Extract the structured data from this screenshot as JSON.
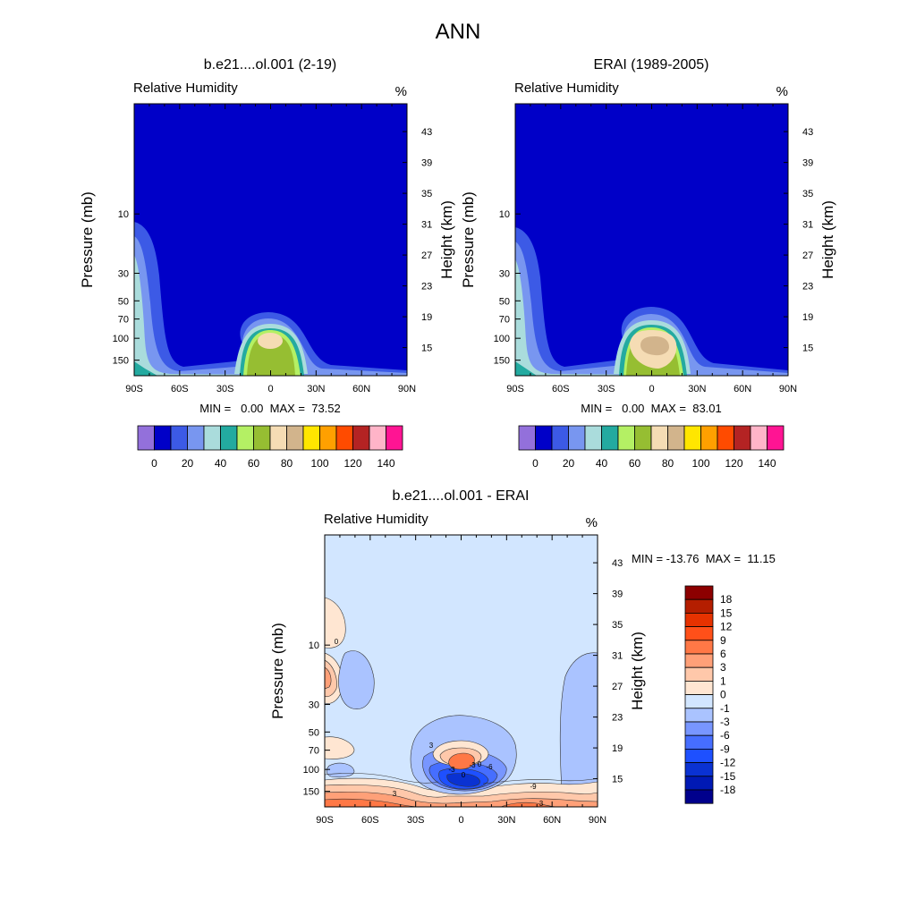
{
  "page": {
    "title": "ANN"
  },
  "colors": {
    "rh_palette": [
      "#9370db",
      "#0000c8",
      "#3c5ae6",
      "#7896f0",
      "#aadcdc",
      "#23aaa0",
      "#b4f064",
      "#96be32",
      "#f5dcb4",
      "#d2b48c",
      "#ffe600",
      "#ffa000",
      "#ff4b00",
      "#b42323",
      "#ffb4c8",
      "#ff1493"
    ],
    "diff_palette": [
      "#00008c",
      "#0019b4",
      "#0a32d2",
      "#1e50ff",
      "#466eff",
      "#7896ff",
      "#aac3ff",
      "#d2e6ff",
      "#ffe6d2",
      "#ffc8aa",
      "#ffa078",
      "#ff7846",
      "#ff5019",
      "#e63200",
      "#b41e00",
      "#8c0000"
    ]
  },
  "chart_data": [
    {
      "type": "contour",
      "panel": "left",
      "title": "b.e21....ol.001 (2-19)",
      "variable": "Relative Humidity",
      "units": "%",
      "ylabel": "Pressure (mb)",
      "ylabel_right": "Height (km)",
      "x_ticks": [
        "90S",
        "60S",
        "30S",
        "0",
        "30N",
        "60N",
        "90N"
      ],
      "y_ticks": [
        "10",
        "30",
        "50",
        "70",
        "100",
        "150"
      ],
      "height_ticks": [
        "43",
        "39",
        "35",
        "31",
        "27",
        "23",
        "19",
        "15"
      ],
      "stats": "MIN =   0.00  MAX =  73.52",
      "colorbar_labels": [
        "0",
        "20",
        "40",
        "60",
        "80",
        "100",
        "120",
        "140"
      ],
      "max_value": 73.52
    },
    {
      "type": "contour",
      "panel": "right",
      "title": "ERAI (1989-2005)",
      "variable": "Relative Humidity",
      "units": "%",
      "ylabel": "Pressure (mb)",
      "ylabel_right": "Height (km)",
      "x_ticks": [
        "90S",
        "60S",
        "30S",
        "0",
        "30N",
        "60N",
        "90N"
      ],
      "y_ticks": [
        "10",
        "30",
        "50",
        "70",
        "100",
        "150"
      ],
      "height_ticks": [
        "43",
        "39",
        "35",
        "31",
        "27",
        "23",
        "19",
        "15"
      ],
      "stats": "MIN =   0.00  MAX =  83.01",
      "colorbar_labels": [
        "0",
        "20",
        "40",
        "60",
        "80",
        "100",
        "120",
        "140"
      ],
      "max_value": 83.01
    },
    {
      "type": "contour",
      "panel": "diff",
      "title": "b.e21....ol.001 - ERAI",
      "variable": "Relative Humidity",
      "units": "%",
      "ylabel": "Pressure (mb)",
      "ylabel_right": "Height (km)",
      "x_ticks": [
        "90S",
        "60S",
        "30S",
        "0",
        "30N",
        "60N",
        "90N"
      ],
      "y_ticks": [
        "10",
        "30",
        "50",
        "70",
        "100",
        "150"
      ],
      "height_ticks": [
        "43",
        "39",
        "35",
        "31",
        "27",
        "23",
        "19",
        "15"
      ],
      "stats": "MIN = -13.76  MAX =  11.15",
      "colorbar_labels": [
        "18",
        "15",
        "12",
        "9",
        "6",
        "3",
        "1",
        "0",
        "-1",
        "-3",
        "-6",
        "-9",
        "-12",
        "-15",
        "-18"
      ],
      "contour_labels": [
        "0",
        "3",
        "-3",
        "0",
        "0",
        "-3",
        "-9",
        "3",
        "-6",
        "3"
      ]
    }
  ]
}
